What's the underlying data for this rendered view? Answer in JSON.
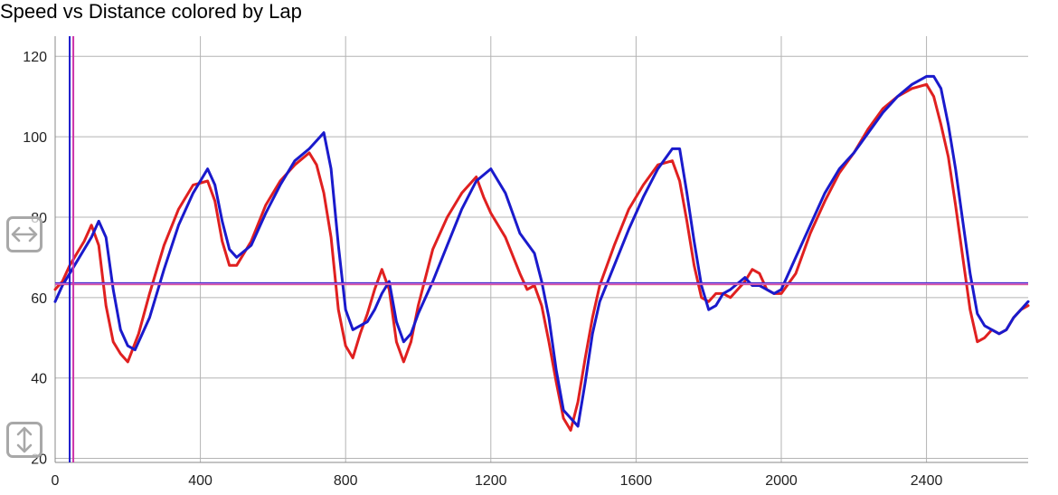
{
  "title": "Speed vs Distance colored by Lap",
  "controls": {
    "horizontal_icon": "horizontal-double-arrow-icon",
    "vertical_icon": "vertical-double-arrow-icon"
  },
  "chart_data": {
    "type": "line",
    "title": "Speed vs Distance colored by Lap",
    "xlabel": "",
    "ylabel": "",
    "xlim": [
      0,
      2680
    ],
    "ylim": [
      19,
      125
    ],
    "xticks": [
      0,
      400,
      800,
      1200,
      1600,
      2000,
      2400
    ],
    "yticks": [
      20,
      40,
      60,
      80,
      100,
      120
    ],
    "grid": true,
    "series": [
      {
        "color": "#e02020",
        "x": [
          0,
          20,
          40,
          60,
          80,
          100,
          120,
          140,
          160,
          180,
          200,
          230,
          260,
          300,
          340,
          380,
          420,
          440,
          460,
          480,
          500,
          540,
          580,
          620,
          660,
          700,
          720,
          740,
          760,
          780,
          800,
          820,
          840,
          860,
          880,
          900,
          920,
          940,
          960,
          980,
          1000,
          1040,
          1080,
          1120,
          1160,
          1180,
          1200,
          1240,
          1280,
          1300,
          1320,
          1340,
          1360,
          1380,
          1400,
          1420,
          1440,
          1460,
          1480,
          1500,
          1540,
          1580,
          1620,
          1660,
          1700,
          1720,
          1740,
          1760,
          1780,
          1800,
          1820,
          1840,
          1860,
          1900,
          1920,
          1940,
          1960,
          1980,
          2000,
          2040,
          2080,
          2120,
          2160,
          2200,
          2240,
          2280,
          2320,
          2360,
          2400,
          2420,
          2440,
          2460,
          2480,
          2500,
          2520,
          2540,
          2560,
          2580,
          2600,
          2620,
          2640,
          2660,
          2680
        ],
        "y": [
          62,
          64,
          68,
          71,
          74,
          78,
          73,
          58,
          49,
          46,
          44,
          51,
          61,
          73,
          82,
          88,
          89,
          84,
          74,
          68,
          68,
          74,
          83,
          89,
          93,
          96,
          93,
          86,
          75,
          57,
          48,
          45,
          51,
          56,
          62,
          67,
          62,
          49,
          44,
          49,
          58,
          72,
          80,
          86,
          90,
          85,
          81,
          75,
          66,
          62,
          63,
          58,
          49,
          39,
          30,
          27,
          34,
          45,
          55,
          63,
          73,
          82,
          88,
          93,
          94,
          89,
          79,
          68,
          60,
          59,
          61,
          61,
          60,
          64,
          67,
          66,
          62,
          61,
          61,
          66,
          76,
          84,
          91,
          96,
          102,
          107,
          110,
          112,
          113,
          110,
          103,
          95,
          83,
          70,
          57,
          49,
          50,
          52,
          51,
          52,
          55,
          57,
          58
        ]
      },
      {
        "color": "#1a1acc",
        "x": [
          0,
          20,
          40,
          60,
          80,
          100,
          120,
          140,
          160,
          180,
          200,
          220,
          260,
          300,
          340,
          380,
          420,
          440,
          460,
          480,
          500,
          540,
          580,
          620,
          660,
          700,
          720,
          740,
          760,
          780,
          800,
          820,
          840,
          860,
          880,
          900,
          920,
          940,
          960,
          980,
          1000,
          1040,
          1080,
          1120,
          1160,
          1200,
          1240,
          1280,
          1320,
          1340,
          1360,
          1380,
          1400,
          1420,
          1440,
          1460,
          1480,
          1500,
          1540,
          1580,
          1620,
          1660,
          1700,
          1720,
          1740,
          1760,
          1780,
          1800,
          1820,
          1840,
          1860,
          1900,
          1920,
          1940,
          1960,
          1980,
          2000,
          2040,
          2080,
          2120,
          2160,
          2200,
          2240,
          2280,
          2320,
          2360,
          2400,
          2420,
          2440,
          2460,
          2480,
          2500,
          2520,
          2540,
          2560,
          2580,
          2600,
          2620,
          2640,
          2660,
          2680
        ],
        "y": [
          59,
          63,
          66,
          69,
          72,
          75,
          79,
          75,
          62,
          52,
          48,
          47,
          55,
          67,
          78,
          86,
          92,
          88,
          79,
          72,
          70,
          73,
          81,
          88,
          94,
          97,
          99,
          101,
          92,
          73,
          57,
          52,
          53,
          54,
          57,
          61,
          64,
          54,
          49,
          51,
          56,
          64,
          73,
          82,
          89,
          92,
          86,
          76,
          71,
          64,
          55,
          42,
          32,
          30,
          28,
          39,
          51,
          59,
          68,
          77,
          85,
          92,
          97,
          97,
          86,
          74,
          63,
          57,
          58,
          61,
          62,
          65,
          63,
          63,
          62,
          61,
          62,
          70,
          78,
          86,
          92,
          96,
          101,
          106,
          110,
          113,
          115,
          115,
          112,
          103,
          92,
          79,
          66,
          56,
          53,
          52,
          51,
          52,
          55,
          57,
          59
        ]
      }
    ],
    "horizontal_lines": [
      {
        "y": 63.3,
        "color": "#e02020"
      },
      {
        "y": 63.6,
        "color": "#1a1acc"
      },
      {
        "y": 63.4,
        "color": "#cc66cc"
      }
    ],
    "vertical_lines": [
      {
        "x": 40,
        "color": "#1a1acc"
      },
      {
        "x": 50,
        "color": "#cc33aa"
      }
    ]
  }
}
